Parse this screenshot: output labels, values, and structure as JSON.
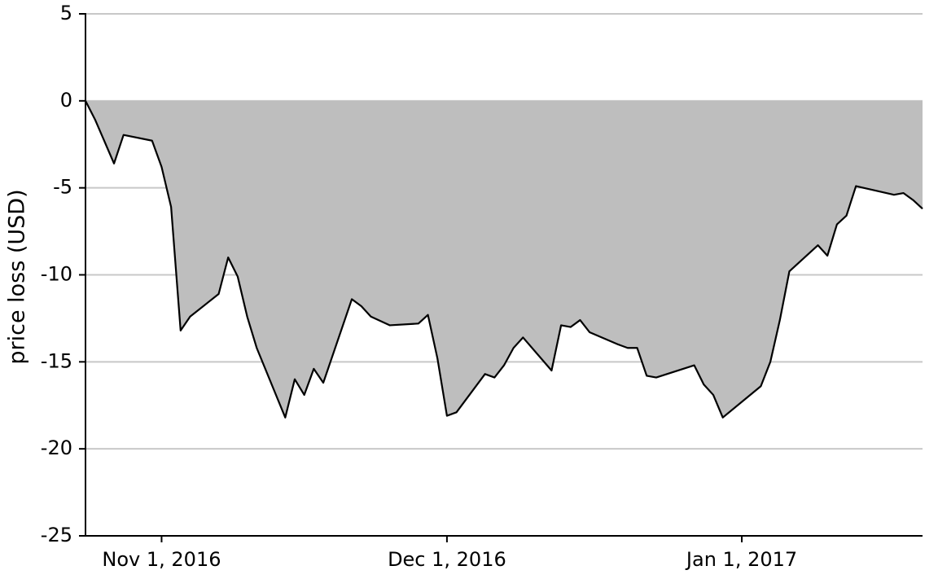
{
  "chart_data": {
    "type": "area",
    "y_label": "price loss (USD)",
    "x": [
      "2016-10-24",
      "2016-10-25",
      "2016-10-27",
      "2016-10-28",
      "2016-10-31",
      "2016-11-01",
      "2016-11-02",
      "2016-11-03",
      "2016-11-04",
      "2016-11-07",
      "2016-11-08",
      "2016-11-09",
      "2016-11-10",
      "2016-11-11",
      "2016-11-14",
      "2016-11-15",
      "2016-11-16",
      "2016-11-17",
      "2016-11-18",
      "2016-11-21",
      "2016-11-22",
      "2016-11-23",
      "2016-11-25",
      "2016-11-28",
      "2016-11-29",
      "2016-11-30",
      "2016-12-01",
      "2016-12-02",
      "2016-12-05",
      "2016-12-06",
      "2016-12-07",
      "2016-12-08",
      "2016-12-09",
      "2016-12-12",
      "2016-12-13",
      "2016-12-14",
      "2016-12-15",
      "2016-12-16",
      "2016-12-19",
      "2016-12-20",
      "2016-12-21",
      "2016-12-22",
      "2016-12-23",
      "2016-12-27",
      "2016-12-28",
      "2016-12-29",
      "2016-12-30",
      "2017-01-03",
      "2017-01-04",
      "2017-01-05",
      "2017-01-06",
      "2017-01-09",
      "2017-01-10",
      "2017-01-11",
      "2017-01-12",
      "2017-01-13",
      "2017-01-17",
      "2017-01-18",
      "2017-01-19",
      "2017-01-20"
    ],
    "values": [
      0,
      -1.07,
      -3.6,
      -1.96,
      -2.29,
      -3.8,
      -6.1,
      -13.2,
      -12.4,
      -11.1,
      -9.0,
      -10.1,
      -12.4,
      -14.2,
      -18.2,
      -16.0,
      -16.9,
      -15.4,
      -16.2,
      -11.4,
      -11.8,
      -12.4,
      -12.9,
      -12.8,
      -12.3,
      -14.8,
      -18.1,
      -17.9,
      -15.7,
      -15.9,
      -15.2,
      -14.2,
      -13.6,
      -15.5,
      -12.9,
      -13.0,
      -12.6,
      -13.3,
      -14.0,
      -14.2,
      -14.2,
      -15.8,
      -15.9,
      -15.2,
      -16.3,
      -16.9,
      -18.2,
      -16.4,
      -15.0,
      -12.6,
      -9.8,
      -8.3,
      -8.9,
      -7.1,
      -6.6,
      -4.9,
      -5.4,
      -5.3,
      -5.7,
      -6.2
    ],
    "color": "#000000",
    "fill": "#bebebe",
    "xlim": [
      "2016-10-24",
      "2017-01-20"
    ],
    "xticks": [
      {
        "value": "2016-11-01",
        "label": "Nov 1, 2016"
      },
      {
        "value": "2016-12-01",
        "label": "Dec 1, 2016"
      },
      {
        "value": "2017-01-01",
        "label": "Jan 1, 2017"
      }
    ],
    "ylim": [
      -25,
      5
    ],
    "yticks": [
      -25,
      -20,
      -15,
      -10,
      -5,
      0,
      5
    ],
    "grid": true
  }
}
